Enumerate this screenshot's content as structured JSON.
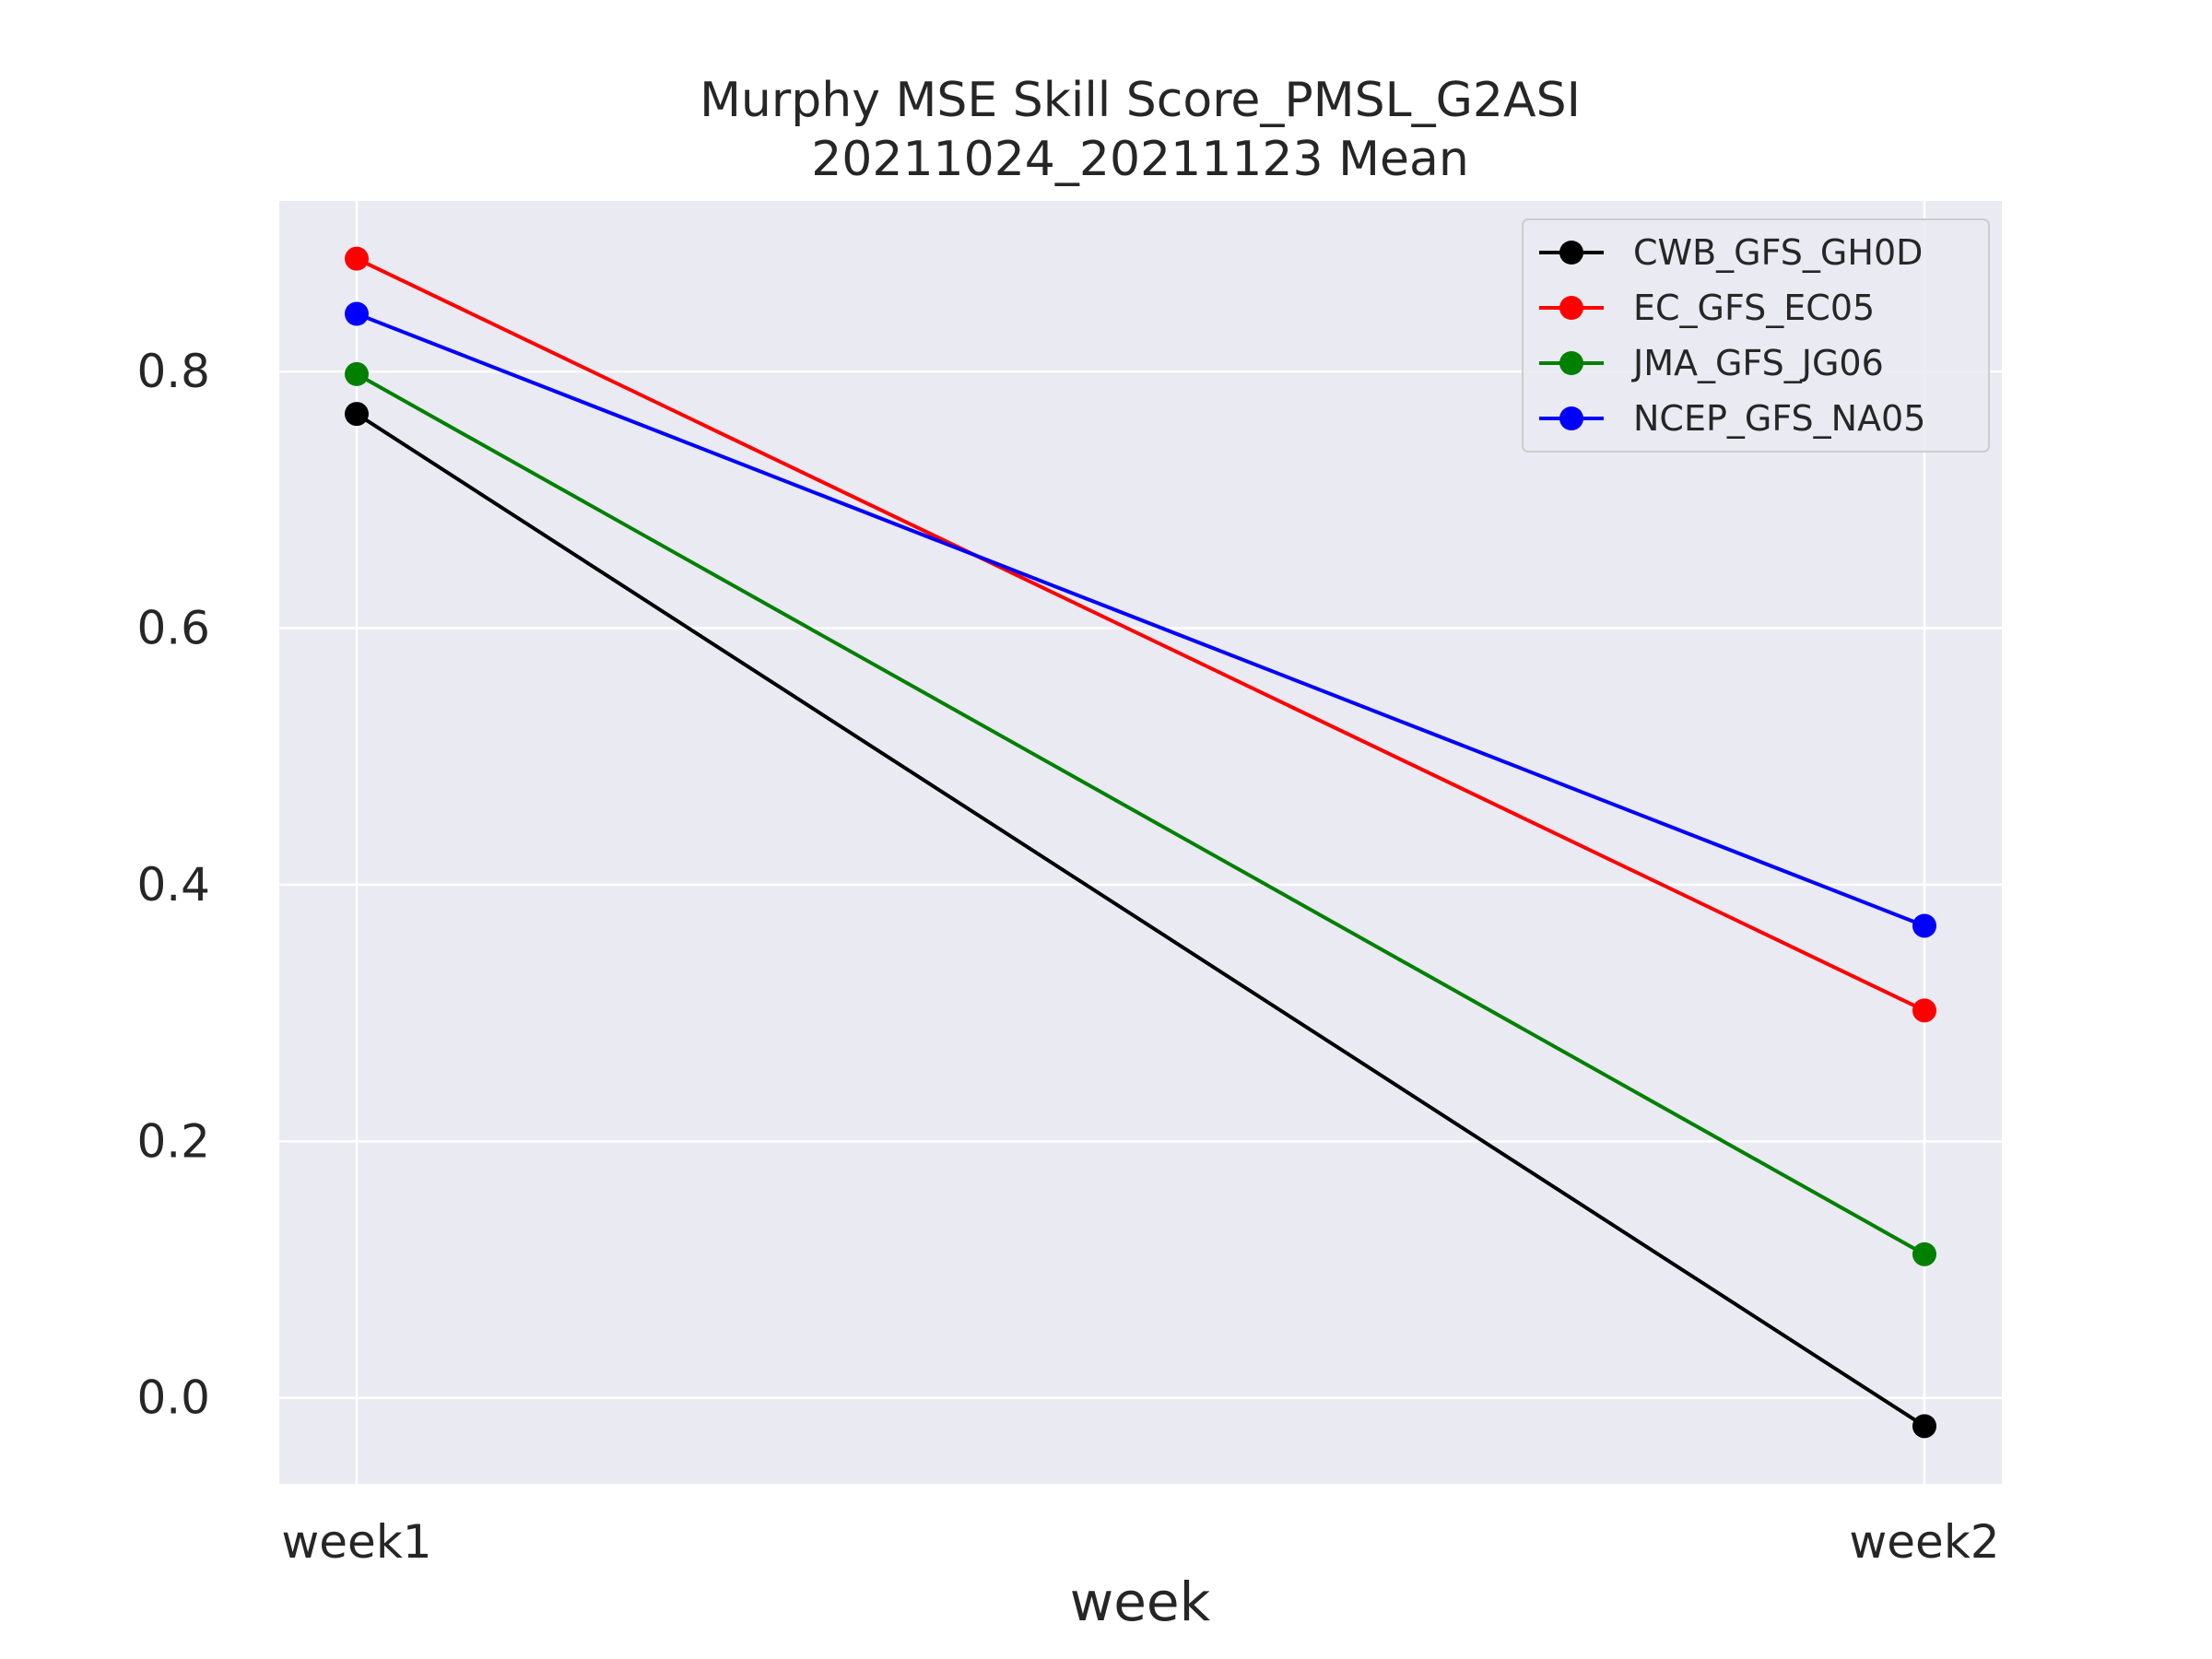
{
  "chart_data": {
    "type": "line",
    "title": "Murphy MSE Skill Score_PMSL_G2ASI",
    "subtitle": "20211024_20211123 Mean",
    "xlabel": "week",
    "ylabel": "",
    "categories": [
      "week1",
      "week2"
    ],
    "ylim": [
      -0.067,
      0.933
    ],
    "yticks": [
      0.0,
      0.2,
      0.4,
      0.6,
      0.8
    ],
    "ytick_labels": [
      "0.0",
      "0.2",
      "0.4",
      "0.6",
      "0.8"
    ],
    "grid": true,
    "legend_position": "top-right",
    "background": "#eaeaf2",
    "series": [
      {
        "name": "CWB_GFS_GH0D",
        "color": "#000000",
        "values": [
          0.767,
          -0.022
        ]
      },
      {
        "name": "EC_GFS_EC05",
        "color": "#ff0000",
        "values": [
          0.888,
          0.302
        ]
      },
      {
        "name": "JMA_GFS_JG06",
        "color": "#008000",
        "values": [
          0.798,
          0.112
        ]
      },
      {
        "name": "NCEP_GFS_NA05",
        "color": "#0000ff",
        "values": [
          0.845,
          0.368
        ]
      }
    ]
  }
}
